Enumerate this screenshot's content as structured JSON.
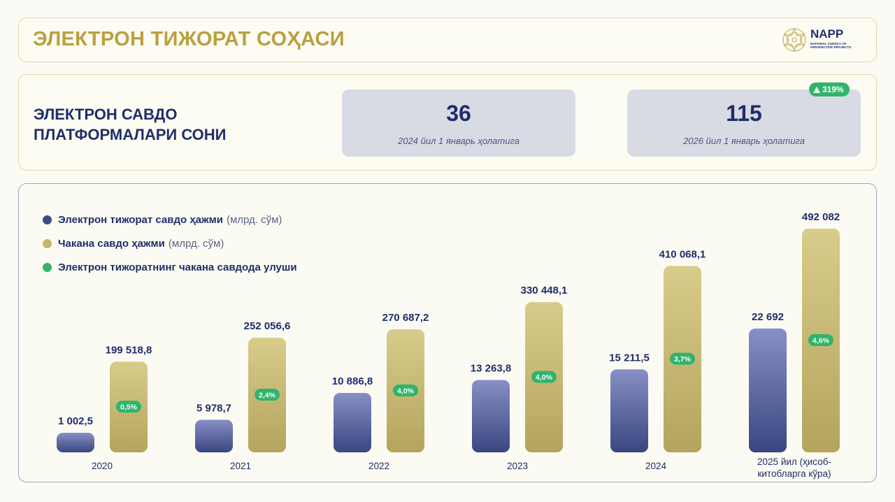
{
  "header": {
    "title": "ЭЛЕКТРОН ТИЖОРАТ СОҲАСИ"
  },
  "logo": {
    "name": "NAPP",
    "subtitle": "NATIONAL AGENCY OF PERSPECTIVE PROJECTS"
  },
  "stats": {
    "title": "ЭЛЕКТРОН САВДО\nПЛАТФОРМАЛАРИ СОНИ",
    "cards": [
      {
        "value": "36",
        "caption": "2024 йил 1 январь ҳолатига"
      },
      {
        "value": "115",
        "caption": "2026 йил 1 январь ҳолатига"
      }
    ],
    "growth_badge": "319%"
  },
  "colors": {
    "ecommerce": "#3e4a86",
    "retail": "#c4b56a",
    "share": "#2fb46b",
    "accent": "#b9a040",
    "navy": "#1f2d6b"
  },
  "chart_data": {
    "type": "bar",
    "categories": [
      "2020",
      "2021",
      "2022",
      "2023",
      "2024",
      "2025 йил (ҳисоб-китобларга кўра)"
    ],
    "legend": [
      {
        "label": "Электрон тижорат савдо ҳажми",
        "unit": "(млрд. сўм)"
      },
      {
        "label": "Чакана савдо ҳажми",
        "unit": "(млрд. сўм)"
      },
      {
        "label": "Электрон тижоратнинг чакана савдода улуши",
        "unit": ""
      }
    ],
    "series": [
      {
        "name": "Электрон тижорат савдо ҳажми",
        "values": [
          1002.5,
          5978.7,
          10886.8,
          13263.8,
          15211.5,
          22692
        ],
        "labels": [
          "1 002,5",
          "5 978,7",
          "10 886,8",
          "13 263,8",
          "15 211,5",
          "22 692"
        ]
      },
      {
        "name": "Чакана савдо ҳажми",
        "values": [
          199518.8,
          252056.6,
          270687.2,
          330448.1,
          410068.1,
          492082
        ],
        "labels": [
          "199 518,8",
          "252 056,6",
          "270 687,2",
          "330 448,1",
          "410 068,1",
          "492 082"
        ]
      },
      {
        "name": "Электрон тижоратнинг чакана савдода улуши",
        "values": [
          0.5,
          2.4,
          4.0,
          4.0,
          3.7,
          4.6
        ],
        "labels": [
          "0,5%",
          "2,4%",
          "4,0%",
          "4,0%",
          "3,7%",
          "4,6%"
        ]
      }
    ]
  }
}
